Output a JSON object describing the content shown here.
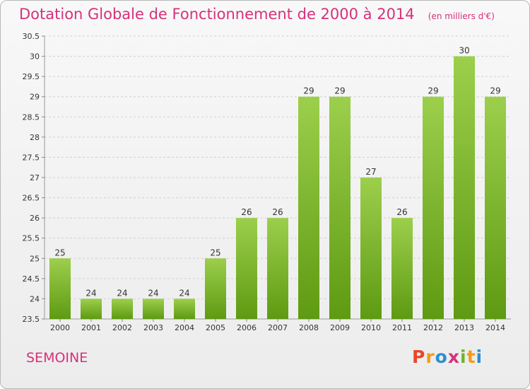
{
  "header": {
    "title": "Dotation Globale de Fonctionnement de 2000 à 2014",
    "subtitle": "(en milliers d'€)"
  },
  "footer": {
    "commune": "SEMOINE",
    "logo_letters": [
      "P",
      "r",
      "o",
      "x",
      "i",
      "t",
      "i"
    ],
    "logo_colors": [
      "#e8462a",
      "#f59a1a",
      "#2a8fd4",
      "#d6317b",
      "#6fb52c",
      "#f59a1a",
      "#2a8fd4"
    ]
  },
  "colors": {
    "title": "#d6317b",
    "bar_top": "#9ccf4c",
    "bar_bottom": "#5e9a12"
  },
  "chart_data": {
    "type": "bar",
    "categories": [
      "2000",
      "2001",
      "2002",
      "2003",
      "2004",
      "2005",
      "2006",
      "2007",
      "2008",
      "2009",
      "2010",
      "2011",
      "2012",
      "2013",
      "2014"
    ],
    "values": [
      25,
      24,
      24,
      24,
      24,
      25,
      26,
      26,
      29,
      29,
      27,
      26,
      29,
      30,
      29
    ],
    "labels": [
      "25",
      "24",
      "24",
      "24",
      "24",
      "25",
      "26",
      "26",
      "29",
      "29",
      "27",
      "26",
      "29",
      "30",
      "29"
    ],
    "ylim": [
      23.5,
      30.5
    ],
    "yticks": [
      23.5,
      24,
      24.5,
      25,
      25.5,
      26,
      26.5,
      27,
      27.5,
      28,
      28.5,
      29,
      29.5,
      30,
      30.5
    ],
    "ytick_labels": [
      "23.5",
      "24",
      "24.5",
      "25",
      "25.5",
      "26",
      "26.5",
      "27",
      "27.5",
      "28",
      "28.5",
      "29",
      "29.5",
      "30",
      "30.5"
    ],
    "grid": true,
    "xlabel": "",
    "ylabel": ""
  }
}
